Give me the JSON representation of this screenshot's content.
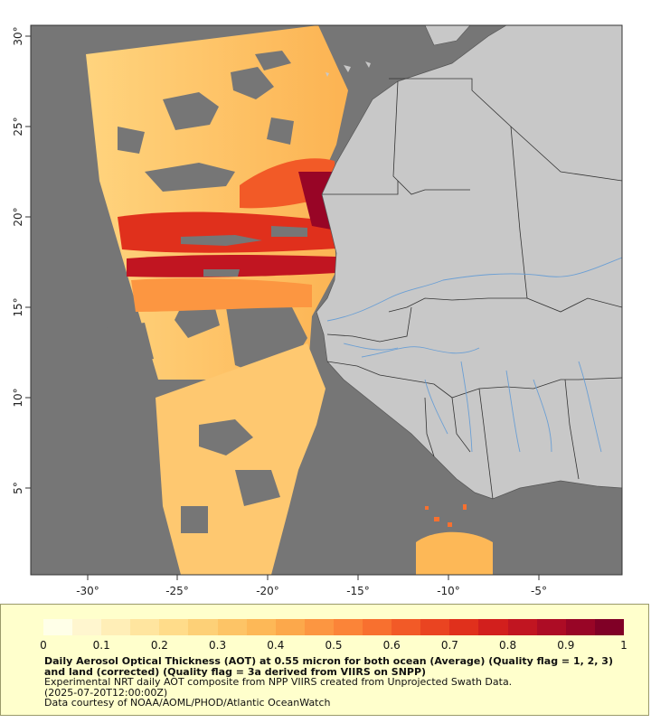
{
  "map": {
    "region": "West Africa / Eastern Atlantic",
    "lat_labels": [
      "30°",
      "25°",
      "20°",
      "15°",
      "10°",
      "5°"
    ],
    "lon_labels": [
      "-30°",
      "-25°",
      "-20°",
      "-15°",
      "-10°",
      "-5°"
    ],
    "colors": {
      "ocean_nodata": "#767676",
      "land": "#c8c8c8",
      "borders": "#333333",
      "rivers": "#6b9fd4"
    }
  },
  "legend": {
    "colorbar_colors": [
      "#ffffe8",
      "#fff6cf",
      "#ffeeb7",
      "#ffe59f",
      "#ffdc8a",
      "#fdd077",
      "#fdc466",
      "#fdb857",
      "#fca84b",
      "#fc9641",
      "#fb8438",
      "#f8702f",
      "#f25a27",
      "#ea4421",
      "#e0301c",
      "#d21f1d",
      "#c11521",
      "#ad0c25",
      "#980526",
      "#800026"
    ],
    "ticks": [
      "0",
      "0.1",
      "0.2",
      "0.3",
      "0.4",
      "0.5",
      "0.6",
      "0.7",
      "0.8",
      "0.9",
      "1"
    ],
    "title": "Daily Aerosol Optical Thickness (AOT) at 0.55 micron for both ocean (Average) (Quality flag = 1, 2, 3) and land (corrected) (Quality flag = 3a derived from VIIRS on SNPP)",
    "line1": "Experimental NRT daily AOT composite from NPP VIIRS created from Unprojected Swath Data.",
    "line2": "(2025-07-20T12:00:00Z)",
    "line3": "Data courtesy of NOAA/AOML/PHOD/Atlantic OceanWatch"
  }
}
